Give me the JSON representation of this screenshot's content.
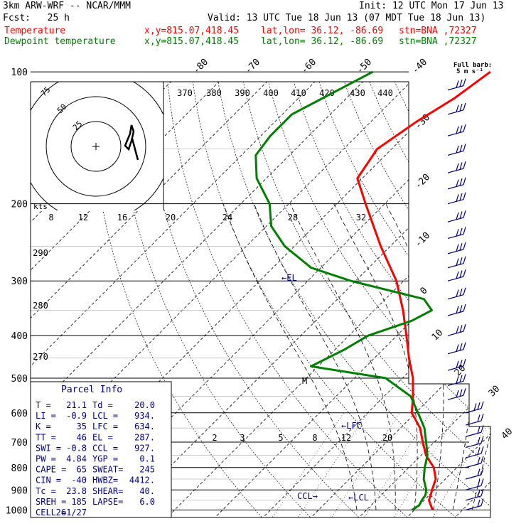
{
  "header": {
    "model": "3km ARW-WRF -- NCAR/MMM",
    "init": "Init: 12 UTC Mon 17 Jun 13",
    "fcst": "Fcst:   25 h",
    "valid": "Valid: 13 UTC Tue 18 Jun 13 (07 MDT Tue 18 Jun 13)",
    "temp_label": "Temperature",
    "dew_label": "Dewpoint temperature",
    "xy": "x,y=815.07,418.45",
    "latlon": "lat,lon= 36.12, -86.69",
    "stn": "stn=BNA ,72327",
    "barb_title": "Full barb:",
    "barb_unit": "5 m s⁻¹"
  },
  "colors": {
    "temperature": "#ff0000",
    "dewpoint": "#008000",
    "text_blue": "#000080",
    "barbs": "#000080"
  },
  "chart_data": {
    "type": "line",
    "title": "",
    "ylabel_units": "hPa",
    "pressure_levels": [
      100,
      200,
      300,
      400,
      500,
      600,
      700,
      800,
      900,
      1000
    ],
    "skewed_isotherm_labels": [
      "-80",
      "-70",
      "-60",
      "-50",
      "-40",
      "-30",
      "-20",
      "-10",
      "0",
      "10",
      "20",
      "30",
      "40"
    ],
    "dry_adiabat_labels": [
      "370",
      "380",
      "390",
      "400",
      "410",
      "420",
      "430",
      "440",
      "290",
      "280",
      "270"
    ],
    "mixing_ratio_labels": [
      "2",
      "3",
      "5",
      "8",
      "12",
      "20"
    ],
    "moist_adiabat_labels": [
      "8",
      "12",
      "16",
      "20",
      "24",
      "28",
      "32"
    ],
    "hodograph_rings": [
      "25",
      "50",
      "75"
    ],
    "hodograph_units": "kts",
    "annotations": [
      "EL",
      "LFC",
      "LCL",
      "CCL",
      "M"
    ],
    "series": [
      {
        "name": "Temperature",
        "points": [
          [
            1000,
            23.8
          ],
          [
            975,
            22.4
          ],
          [
            950,
            21.0
          ],
          [
            925,
            20.3
          ],
          [
            900,
            19.5
          ],
          [
            850,
            18.0
          ],
          [
            800,
            15.2
          ],
          [
            750,
            11.0
          ],
          [
            700,
            7.6
          ],
          [
            650,
            4.1
          ],
          [
            600,
            -0.8
          ],
          [
            550,
            -4.0
          ],
          [
            500,
            -7.8
          ],
          [
            450,
            -12.8
          ],
          [
            400,
            -18.0
          ],
          [
            350,
            -24.0
          ],
          [
            300,
            -31.5
          ],
          [
            250,
            -42.0
          ],
          [
            200,
            -54.0
          ],
          [
            175,
            -61.0
          ],
          [
            150,
            -63.0
          ],
          [
            130,
            -60.5
          ],
          [
            115,
            -57.5
          ],
          [
            100,
            -55.5
          ]
        ]
      },
      {
        "name": "Dewpoint temperature",
        "points": [
          [
            1000,
            19.5
          ],
          [
            975,
            20.0
          ],
          [
            950,
            19.5
          ],
          [
            925,
            19.2
          ],
          [
            900,
            18.3
          ],
          [
            850,
            15.5
          ],
          [
            800,
            13.3
          ],
          [
            750,
            11.3
          ],
          [
            700,
            8.3
          ],
          [
            650,
            5.0
          ],
          [
            600,
            0.5
          ],
          [
            550,
            -4.5
          ],
          [
            500,
            -13.5
          ],
          [
            470,
            -31.5
          ],
          [
            430,
            -28.0
          ],
          [
            400,
            -26.0
          ],
          [
            370,
            -20.0
          ],
          [
            350,
            -18.0
          ],
          [
            330,
            -22.0
          ],
          [
            300,
            -41.0
          ],
          [
            280,
            -52.0
          ],
          [
            250,
            -62.0
          ],
          [
            225,
            -69.0
          ],
          [
            200,
            -74.0
          ],
          [
            175,
            -82.0
          ],
          [
            155,
            -87.0
          ],
          [
            140,
            -88.0
          ],
          [
            125,
            -88.0
          ],
          [
            115,
            -85.0
          ],
          [
            100,
            -80.0
          ]
        ]
      }
    ]
  },
  "parcel_info": {
    "title": "Parcel Info",
    "rows": [
      [
        "T  =",
        "21.1",
        "Td =",
        "20.0"
      ],
      [
        "LI =",
        "-0.9",
        "LCL =",
        "934."
      ],
      [
        "K  =",
        "35",
        "LFC =",
        "634."
      ],
      [
        "TT =",
        "46",
        "EL =",
        "287."
      ],
      [
        "SWI =",
        "-0.8",
        "CCL =",
        "927."
      ],
      [
        "PW =",
        "4.84",
        "YGP =",
        "0.1"
      ],
      [
        "CAPE =",
        "65",
        "SWEAT=",
        "245"
      ],
      [
        "CIN =",
        "-40",
        "HWBZ=",
        "4412."
      ],
      [
        "Tc =",
        "23.8",
        "SHEAR=",
        "40."
      ],
      [
        "SREH =",
        "185",
        "LAPSE=",
        "6.0"
      ],
      [
        "CELL =",
        "261/27",
        "",
        ""
      ]
    ]
  }
}
